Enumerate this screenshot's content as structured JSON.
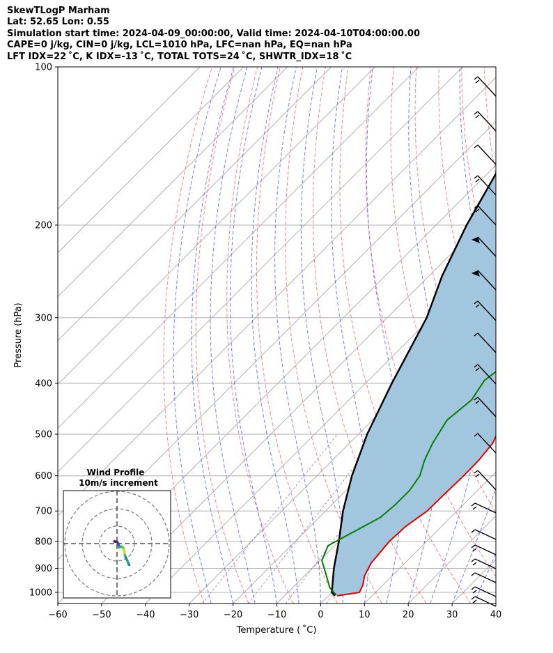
{
  "header": {
    "line1": "SkewTLogP Marham",
    "line2": "Lat: 52.65   Lon: 0.55",
    "line3": "Simulation start time: 2024-04-09_00:00:00, Valid time: 2024-04-10T04:00:00.00",
    "line4": "CAPE=0 j/kg, CIN=0 j/kg, LCL=1010 hPa, LFC=nan hPa, EQ=nan hPa",
    "line5": "LFT IDX=22 ˚C, K IDX=-13 ˚C, TOTAL TOTS=24 ˚C, SHWTR_IDX=18 ˚C"
  },
  "colors": {
    "temperature": "#e00000",
    "dewpoint": "#008000",
    "parcel": "#000000",
    "fill": "#a3c6df",
    "dry_adiabat": "#ff6666",
    "moist_adiabat": "#5566ff",
    "isotherm": "#aaaaaa",
    "mixing_ratio": "#9966cc"
  },
  "chart_data": [
    {
      "type": "line",
      "title": "",
      "xlabel": "Temperature ( ˚C)",
      "ylabel": "Pressure (hPa)",
      "xlim": [
        -60,
        40
      ],
      "ylim": [
        1050,
        100
      ],
      "y_scale": "log",
      "skew": true,
      "grid": true,
      "x_ticks": [
        "−60",
        "−50",
        "−40",
        "−30",
        "−20",
        "−10",
        "0",
        "10",
        "20",
        "30",
        "40"
      ],
      "y_ticks": [
        "100",
        "200",
        "300",
        "400",
        "500",
        "600",
        "700",
        "800",
        "900",
        "1000"
      ],
      "shading": "area between temperature and parcel profile",
      "series": [
        {
          "role": "temperature",
          "x": [
            2,
            6.3,
            5.5,
            3.7,
            2.3,
            1.5,
            1.8,
            3.2,
            3.3,
            3.5,
            3.4,
            2.7,
            1,
            -2.5,
            -5.5,
            -8.8,
            -10.8,
            -11,
            -11.2,
            -11.2,
            -10.5,
            -5,
            2,
            12,
            16
          ],
          "y": [
            1015,
            1000,
            970,
            930,
            880,
            800,
            750,
            700,
            650,
            600,
            560,
            520,
            490,
            420,
            380,
            350,
            320,
            290,
            250,
            230,
            205,
            180,
            155,
            120,
            100
          ]
        },
        {
          "role": "dewpoint",
          "x": [
            1.5,
            0.5,
            -1.5,
            -5,
            -9.5,
            -11.5,
            -9,
            -6,
            -5.5,
            -5.5,
            -6.5,
            -9,
            -11,
            -13,
            -12,
            -13.5,
            -12,
            -13,
            -14.5,
            -15,
            -16,
            -18.5,
            -22,
            -24,
            -23,
            -22,
            -18
          ],
          "y": [
            1010,
            1000,
            980,
            930,
            870,
            815,
            770,
            720,
            680,
            640,
            600,
            560,
            520,
            470,
            430,
            395,
            360,
            330,
            300,
            270,
            240,
            215,
            200,
            185,
            170,
            150,
            100
          ]
        },
        {
          "role": "parcel",
          "x": [
            1.5,
            0,
            -5,
            -10,
            -16,
            -22,
            -28,
            -34,
            -41,
            -47,
            -53,
            -58,
            -62,
            -64
          ],
          "y": [
            1015,
            1000,
            900,
            800,
            700,
            600,
            500,
            400,
            300,
            250,
            200,
            160,
            130,
            100
          ]
        }
      ]
    },
    {
      "type": "scatter",
      "title": "Wind Profile",
      "subtitle": "10m/s increment",
      "rings": [
        10,
        20,
        30
      ],
      "series": [
        {
          "role": "hodograph",
          "u": [
            -3,
            0,
            1.5,
            2,
            2.5,
            3,
            5,
            7,
            8,
            8.5,
            9,
            10,
            11.5,
            12.5,
            13,
            13.5,
            14
          ],
          "v": [
            2.5,
            2,
            0,
            -2,
            -4,
            -4,
            -3.5,
            -4.5,
            -7,
            -10,
            -13,
            -16,
            -19,
            -21,
            -22.5,
            -24,
            -24.5
          ]
        }
      ]
    }
  ]
}
